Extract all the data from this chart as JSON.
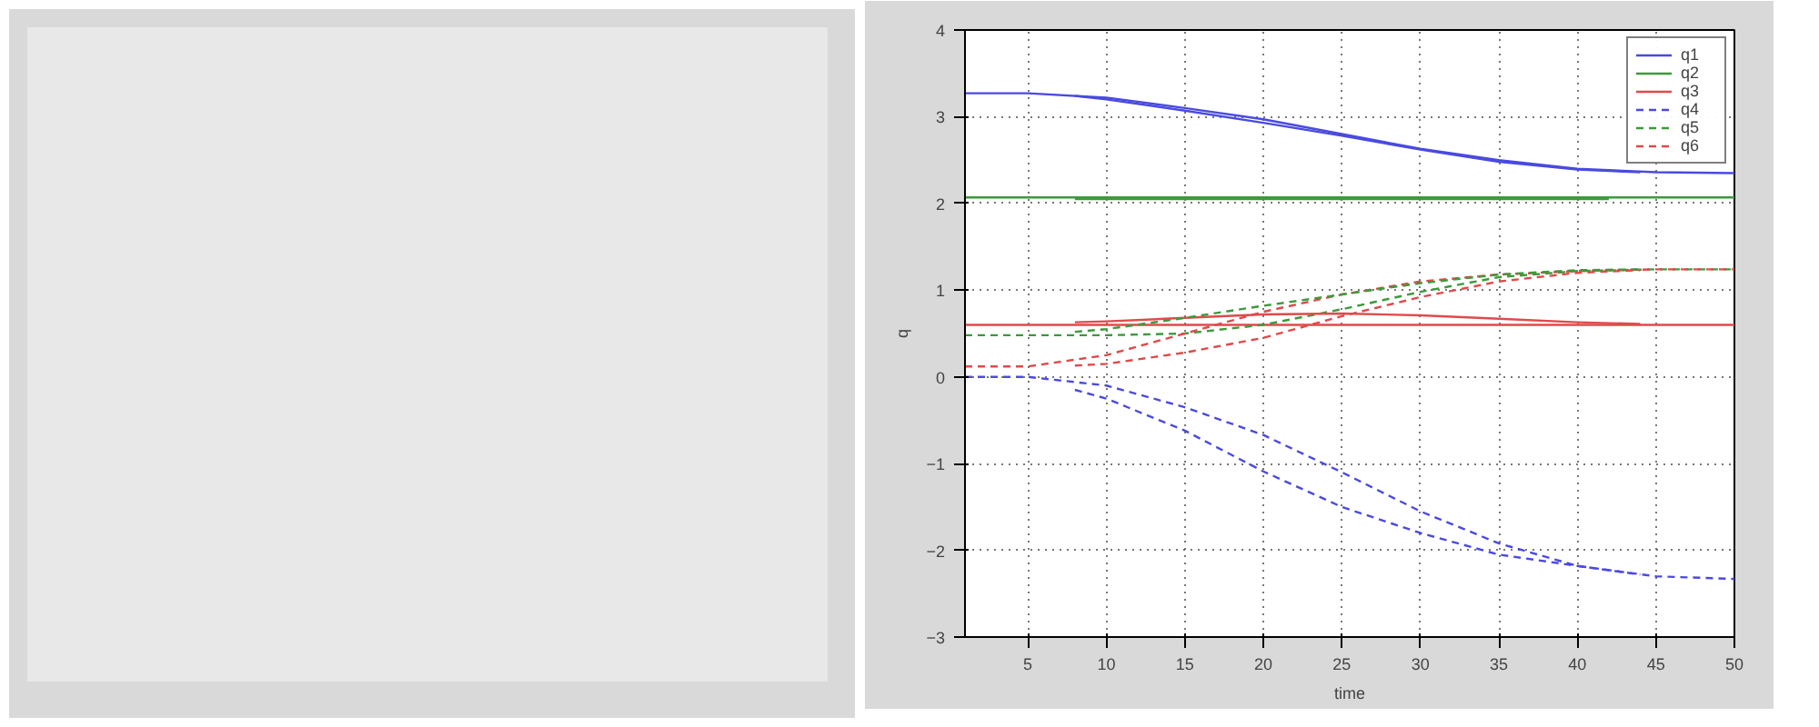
{
  "chart_data": {
    "type": "line",
    "xlabel": "time",
    "ylabel": "q",
    "x": [
      1,
      5,
      10,
      15,
      20,
      25,
      30,
      35,
      40,
      45,
      50
    ],
    "xlim": [
      1,
      50
    ],
    "xticks": [
      5,
      10,
      15,
      20,
      25,
      30,
      35,
      40,
      45,
      50
    ],
    "ylim": [
      -3,
      4
    ],
    "yticks": [
      -3,
      -2,
      -1,
      0,
      1,
      2,
      3,
      4
    ],
    "grid": true,
    "legend": "top right",
    "series": [
      {
        "name": "q1",
        "color": "#4a4ae0",
        "line_style": "solid",
        "values": [
          3.27,
          3.27,
          3.22,
          3.1,
          2.97,
          2.8,
          2.63,
          2.5,
          2.4,
          2.36,
          2.35
        ]
      },
      {
        "name": "q2",
        "color": "#3c9a3c",
        "line_style": "solid",
        "values": [
          2.07,
          2.07,
          2.07,
          2.07,
          2.07,
          2.07,
          2.07,
          2.07,
          2.07,
          2.07,
          2.07
        ]
      },
      {
        "name": "q3",
        "color": "#e04a4a",
        "line_style": "solid",
        "values": [
          0.6,
          0.6,
          0.6,
          0.6,
          0.6,
          0.6,
          0.6,
          0.6,
          0.6,
          0.6,
          0.6
        ]
      },
      {
        "name": "q4",
        "color": "#4a4ae0",
        "line_style": "dashed",
        "values": [
          0,
          0,
          -0.1,
          -0.35,
          -0.67,
          -1.1,
          -1.55,
          -1.92,
          -2.18,
          -2.3,
          -2.33
        ]
      },
      {
        "name": "q5",
        "color": "#3c9a3c",
        "line_style": "dashed",
        "values": [
          0.48,
          0.48,
          0.48,
          0.5,
          0.6,
          0.78,
          0.98,
          1.15,
          1.22,
          1.24,
          1.24
        ]
      },
      {
        "name": "q6",
        "color": "#e04a4a",
        "line_style": "dashed",
        "values": [
          0.12,
          0.12,
          0.25,
          0.5,
          0.75,
          0.95,
          1.1,
          1.18,
          1.22,
          1.24,
          1.24
        ]
      },
      {
        "color": "#4a4ae0",
        "line_style": "solid",
        "x": [
          8,
          10,
          15,
          20,
          25,
          30,
          35,
          40,
          44
        ],
        "values": [
          3.24,
          3.2,
          3.07,
          2.93,
          2.78,
          2.62,
          2.48,
          2.39,
          2.36
        ]
      },
      {
        "color": "#3c9a3c",
        "line_style": "solid",
        "x": [
          8,
          10,
          15,
          20,
          25,
          30,
          35,
          40,
          42
        ],
        "values": [
          2.05,
          2.05,
          2.05,
          2.05,
          2.05,
          2.05,
          2.05,
          2.05,
          2.05
        ]
      },
      {
        "color": "#e04a4a",
        "line_style": "solid",
        "x": [
          8,
          10,
          15,
          20,
          25,
          30,
          35,
          40,
          44
        ],
        "values": [
          0.63,
          0.64,
          0.68,
          0.72,
          0.73,
          0.71,
          0.67,
          0.63,
          0.61
        ]
      },
      {
        "color": "#4a4ae0",
        "line_style": "dashed",
        "x": [
          8,
          10,
          15,
          20,
          25,
          30,
          35,
          40,
          44
        ],
        "values": [
          -0.15,
          -0.25,
          -0.62,
          -1.09,
          -1.5,
          -1.8,
          -2.05,
          -2.18,
          -2.28
        ]
      },
      {
        "color": "#3c9a3c",
        "line_style": "dashed",
        "x": [
          8,
          10,
          15,
          20,
          25,
          30,
          35,
          40,
          44
        ],
        "values": [
          0.52,
          0.55,
          0.68,
          0.82,
          0.95,
          1.08,
          1.18,
          1.23,
          1.24
        ]
      },
      {
        "color": "#e04a4a",
        "line_style": "dashed",
        "x": [
          8,
          10,
          15,
          20,
          25,
          30,
          35,
          40,
          44
        ],
        "values": [
          0.13,
          0.15,
          0.28,
          0.45,
          0.7,
          0.92,
          1.1,
          1.2,
          1.23
        ]
      }
    ]
  }
}
